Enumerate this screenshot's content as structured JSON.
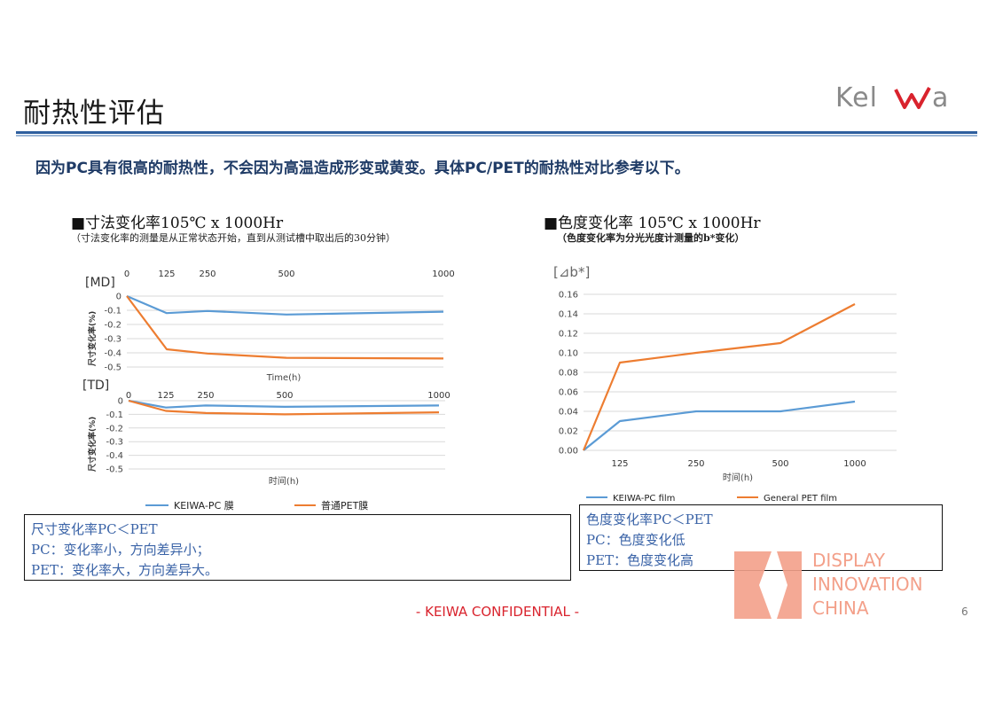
{
  "header": {
    "title": "耐热性评估",
    "logo_text": "KeIWa"
  },
  "subtitle": "因为PC具有很高的耐热性，不会因为高温造成形变或黄变。具体PC/PET的耐热性对比参考以下。",
  "left_panel": {
    "title": "■寸法变化率105℃ x 1000Hr",
    "note": "（寸法变化率的测量是从正常状态开始，直到从测试槽中取出后的30分钟）",
    "summary": [
      "尺寸变化率PC＜PET",
      "PC：变化率小，方向差异小；",
      "PET：变化率大，方向差异大。"
    ]
  },
  "right_panel": {
    "title": "■色度变化率 105℃ x 1000Hr",
    "note": "（色度变化率为分光光度计测量的b*变化）",
    "summary": [
      "色度变化率PC＜PET",
      "PC：色度变化低",
      "PET：色度变化高"
    ]
  },
  "chart_data": [
    {
      "type": "line",
      "tag": "[MD]",
      "x": [
        0,
        125,
        250,
        500,
        1000
      ],
      "x_ticks": [
        "0",
        "125",
        "250",
        "500",
        "1000"
      ],
      "xlabel": "Time(h)",
      "ylabel": "尺寸变化率(%)",
      "ylim": [
        -0.5,
        0
      ],
      "y_ticks": [
        "0",
        "-0.1",
        "-0.2",
        "-0.3",
        "-0.4",
        "-0.5"
      ],
      "series": [
        {
          "name": "KEIWA-PC 膜",
          "color": "#5b9bd5",
          "values": [
            0,
            -0.12,
            -0.105,
            -0.13,
            -0.11
          ]
        },
        {
          "name": "普通PET膜",
          "color": "#ed7d31",
          "values": [
            0,
            -0.375,
            -0.405,
            -0.435,
            -0.44
          ]
        }
      ]
    },
    {
      "type": "line",
      "tag": "[TD]",
      "x": [
        0,
        125,
        250,
        500,
        1000
      ],
      "x_ticks": [
        "0",
        "125",
        "250",
        "500",
        "1000"
      ],
      "xlabel": "时间(h)",
      "ylabel": "尺寸变化率(%)",
      "ylim": [
        -0.5,
        0
      ],
      "y_ticks": [
        "0",
        "-0.1",
        "-0.2",
        "-0.3",
        "-0.4",
        "-0.5"
      ],
      "legend": "bottom",
      "series": [
        {
          "name": "KEIWA-PC 膜",
          "color": "#5b9bd5",
          "values": [
            0,
            -0.05,
            -0.035,
            -0.045,
            -0.035
          ]
        },
        {
          "name": "普通PET膜",
          "color": "#ed7d31",
          "values": [
            0,
            -0.075,
            -0.09,
            -0.1,
            -0.085
          ]
        }
      ]
    },
    {
      "type": "line",
      "tag": "[⊿b*]",
      "x": [
        0,
        125,
        250,
        500,
        1000
      ],
      "x_ticks": [
        "125",
        "250",
        "500",
        "1000"
      ],
      "xlabel": "时间(h)",
      "ylim": [
        0,
        0.16
      ],
      "y_ticks": [
        "0.00",
        "0.02",
        "0.04",
        "0.06",
        "0.08",
        "0.10",
        "0.12",
        "0.14",
        "0.16"
      ],
      "legend": "bottom",
      "series": [
        {
          "name": "KEIWA-PC film",
          "color": "#5b9bd5",
          "values": [
            0,
            0.03,
            0.04,
            0.04,
            0.05
          ]
        },
        {
          "name": "General PET film",
          "color": "#ed7d31",
          "values": [
            0,
            0.09,
            0.1,
            0.11,
            0.15
          ]
        }
      ]
    }
  ],
  "footer": {
    "confidential": "- KEIWA CONFIDENTIAL -",
    "page_number": "6"
  },
  "watermark": {
    "lines": [
      "DISPLAY",
      "INNOVATION",
      "CHINA"
    ],
    "color": "#f3a08a"
  }
}
